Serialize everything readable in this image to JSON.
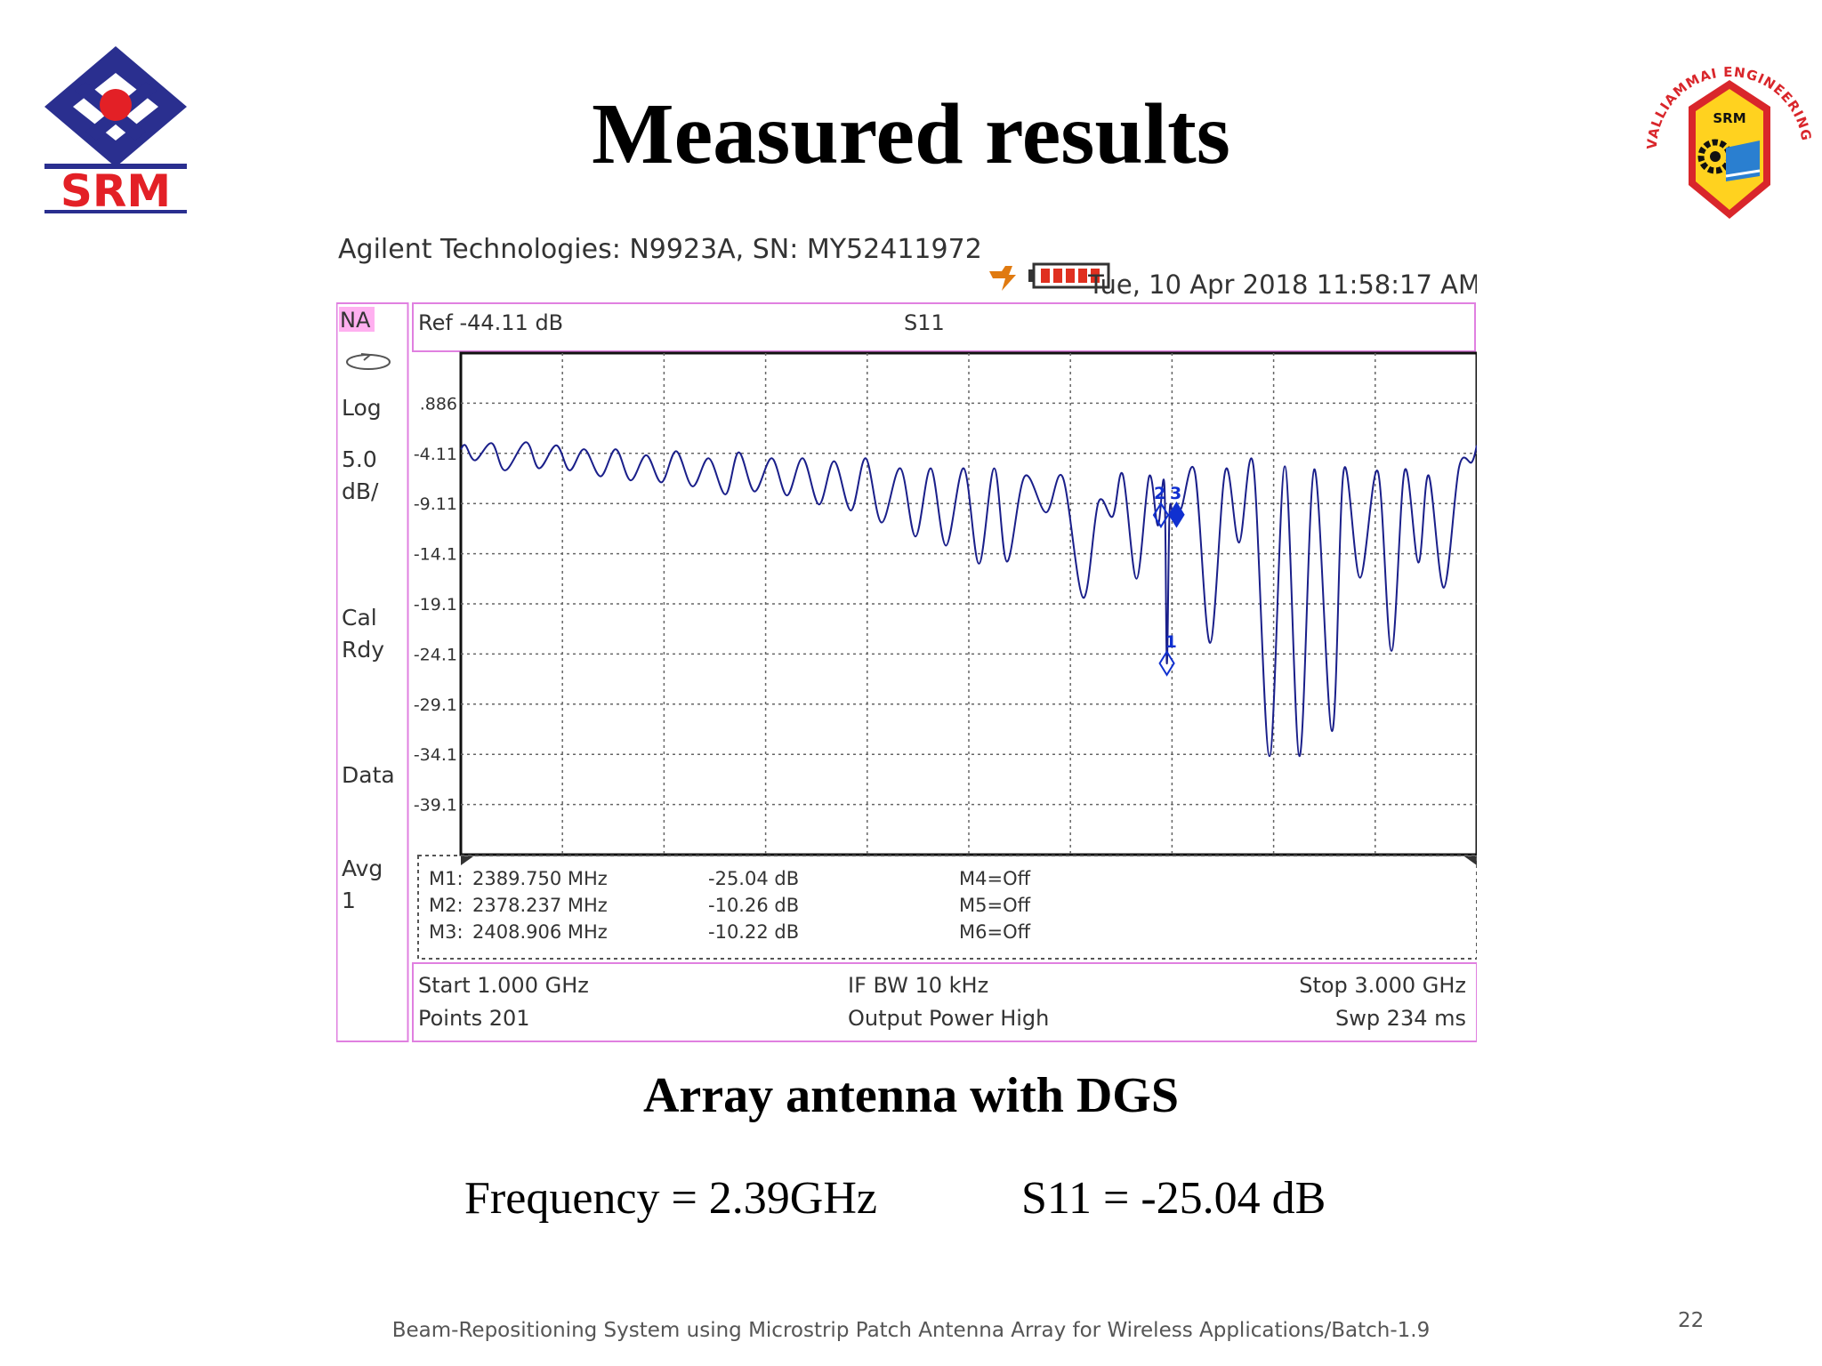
{
  "slide": {
    "title": "Measured results",
    "caption": "Array antenna with DGS",
    "frequency_text": "Frequency = 2.39GHz",
    "s11_text": "S11 = -25.04 dB",
    "footer": "Beam-Repositioning System using Microstrip Patch Antenna Array for Wireless Applications/Batch-1.9",
    "page_number": "22",
    "srm_logo_text": "SRM",
    "college_logo_text": "VALLIAMMAI ENGINEERING COLLEGE",
    "college_logo_badge": "SRM"
  },
  "colors": {
    "trace": "#1a1f8a",
    "marker": "#1030d0",
    "frame_pink": "#e080e0",
    "na_badge": "#ffb0f0",
    "srm_blue": "#2a2f8f",
    "srm_red": "#e32026",
    "shield_yellow": "#ffd21f",
    "college_red": "#d9262b"
  },
  "analyzer": {
    "header": "Agilent Technologies: N9923A, SN: MY52411972",
    "datetime": "Tue, 10 Apr 2018 11:58:17 AM",
    "mode": "NA",
    "ref": "Ref -44.11 dB",
    "measurement": "S11",
    "side_labels": [
      "Log",
      "5.0",
      "dB/",
      "Cal",
      "Rdy",
      "Data",
      "Avg",
      "1"
    ],
    "markers_table": [
      {
        "id": "M1:",
        "freq": "2389.750 MHz",
        "value": "-25.04 dB",
        "other": "M4=Off"
      },
      {
        "id": "M2:",
        "freq": "2378.237 MHz",
        "value": "-10.26 dB",
        "other": "M5=Off"
      },
      {
        "id": "M3:",
        "freq": "2408.906 MHz",
        "value": "-10.22 dB",
        "other": "M6=Off"
      }
    ],
    "bottom": {
      "start": "Start 1.000 GHz",
      "points": "Points 201",
      "ifbw": "IF BW 10 kHz",
      "power": "Output Power High",
      "stop": "Stop 3.000 GHz",
      "sweep": "Swp 234 ms"
    }
  },
  "chart_data": {
    "type": "line",
    "title": "S11",
    "xlabel": "",
    "ylabel": "",
    "x_unit": "GHz",
    "y_unit": "dB",
    "xlim": [
      1.0,
      3.0
    ],
    "ylim": [
      -44.11,
      5.89
    ],
    "grid": true,
    "y_tick_labels": [
      ".886",
      "-4.11",
      "-9.11",
      "-14.1",
      "-19.1",
      "-24.1",
      "-29.1",
      "-34.1",
      "-39.1"
    ],
    "series": [
      {
        "x": [
          1.0,
          1.009,
          1.028,
          1.061,
          1.087,
          1.128,
          1.154,
          1.188,
          1.214,
          1.243,
          1.275,
          1.305,
          1.334,
          1.365,
          1.395,
          1.424,
          1.456,
          1.488,
          1.521,
          1.547,
          1.578,
          1.612,
          1.642,
          1.673,
          1.705,
          1.735,
          1.768,
          1.797,
          1.828,
          1.865,
          1.895,
          1.925,
          1.955,
          1.99,
          2.02,
          2.05,
          2.075,
          2.11,
          2.152,
          2.185,
          2.225,
          2.255,
          2.283,
          2.303,
          2.33,
          2.355,
          2.372,
          2.385,
          2.3898,
          2.395,
          2.402,
          2.418,
          2.445,
          2.475,
          2.505,
          2.532,
          2.56,
          2.592,
          2.622,
          2.651,
          2.68,
          2.715,
          2.738,
          2.77,
          2.805,
          2.832,
          2.858,
          2.885,
          2.905,
          2.935,
          2.965,
          2.99,
          3.0
        ],
        "y": [
          -3.7,
          -3.3,
          -4.8,
          -3.1,
          -5.8,
          -3.0,
          -5.6,
          -3.3,
          -5.8,
          -3.7,
          -6.4,
          -3.7,
          -6.8,
          -4.3,
          -7.0,
          -3.9,
          -7.4,
          -4.6,
          -8.2,
          -4.0,
          -7.9,
          -4.6,
          -8.3,
          -4.6,
          -9.2,
          -4.9,
          -9.8,
          -4.6,
          -11.0,
          -5.6,
          -12.4,
          -5.6,
          -13.3,
          -5.6,
          -15.1,
          -5.6,
          -14.9,
          -6.4,
          -10.0,
          -6.5,
          -18.5,
          -9.0,
          -10.4,
          -6.2,
          -16.6,
          -6.4,
          -11.3,
          -7.2,
          -25.04,
          -10.3,
          -10.0,
          -9.6,
          -6.0,
          -23.0,
          -5.8,
          -13.0,
          -5.3,
          -34.3,
          -5.4,
          -34.3,
          -5.7,
          -31.8,
          -5.8,
          -16.5,
          -5.9,
          -23.8,
          -5.8,
          -15.0,
          -6.3,
          -17.5,
          -5.5,
          -5.0,
          -3.3
        ]
      }
    ],
    "markers": [
      {
        "id": "1",
        "x": 2.3898,
        "y": -25.04
      },
      {
        "id": "2",
        "x": 2.3782,
        "y": -10.26
      },
      {
        "id": "3",
        "x": 2.4089,
        "y": -10.22
      }
    ]
  }
}
